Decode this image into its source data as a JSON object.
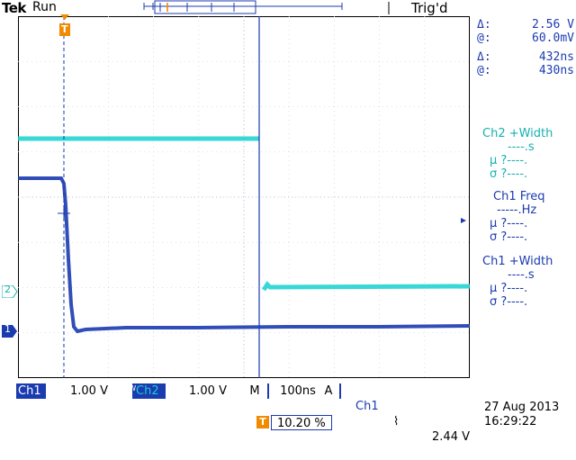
{
  "header": {
    "brand": "Tek",
    "run_state": "Run",
    "trigger_state": "Trig'd"
  },
  "cursor_readout": {
    "rows": [
      {
        "sym": "Δ:",
        "val": "2.56 V"
      },
      {
        "sym": "@:",
        "val": "60.0mV"
      },
      {
        "sym": "Δ:",
        "val": "432ns"
      },
      {
        "sym": "@:",
        "val": "430ns"
      }
    ]
  },
  "measurements": [
    {
      "title": "Ch2 +Width",
      "value": "----.s",
      "mean": "µ ?----.",
      "sigma": "σ ?----.",
      "color": "#18b0b0"
    },
    {
      "title": "Ch1 Freq",
      "value": "-----.Hz",
      "mean": "µ ?----.",
      "sigma": "σ ?----.",
      "color": "#1b3bb0"
    },
    {
      "title": "Ch1 +Width",
      "value": "----.s",
      "mean": "µ ?----.",
      "sigma": "σ ?----.",
      "color": "#1b3bb0"
    }
  ],
  "markers": {
    "trigger": "T",
    "ch2": "2",
    "ch1": "1"
  },
  "status_bar": {
    "ch1_label": "Ch1",
    "ch1_scale": "1.00 V",
    "bw_symbol": "BW",
    "ch2_label": "Ch2",
    "ch2_scale": "1.00 V",
    "timebase_label": "M",
    "timebase": "100ns",
    "acq_label": "A",
    "trig_source": "Ch1",
    "trig_slope": "⌇",
    "trig_level": "2.44 V"
  },
  "trigger_position": {
    "icon": "T",
    "value": "10.20 %"
  },
  "datetime": {
    "date": "27 Aug 2013",
    "time": "16:29:22"
  },
  "colors": {
    "ch1": "#1b3bb0",
    "ch2": "#18d0d0",
    "trigger_marker": "#f08a00",
    "status_bg": "#1b3bb0",
    "grid": "#cfd6e8"
  }
}
